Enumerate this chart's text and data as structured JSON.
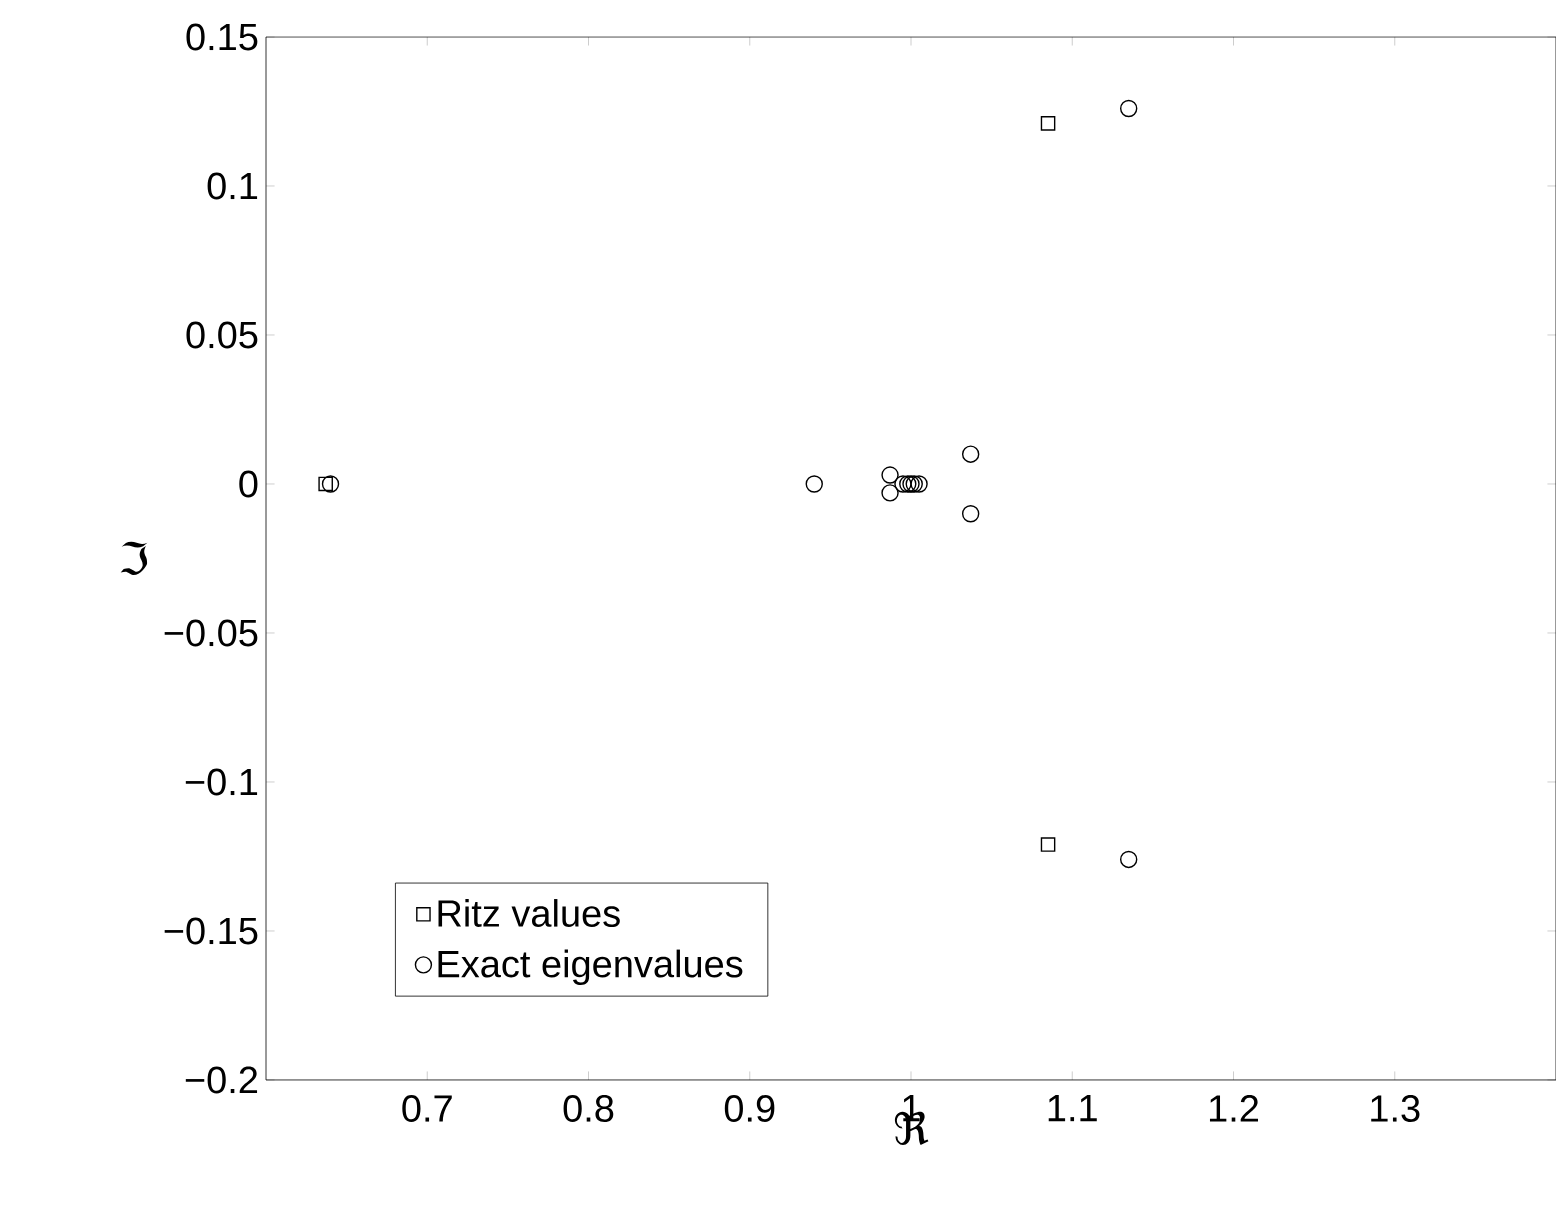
{
  "chart_data": {
    "type": "scatter",
    "xlabel": "ℜ",
    "ylabel": "ℑ",
    "xlim": [
      0.6,
      1.4
    ],
    "ylim": [
      -0.2,
      0.15
    ],
    "xticks": [
      0.7,
      0.8,
      0.9,
      1,
      1.1,
      1.2,
      1.3
    ],
    "yticks": [
      {
        "value": -0.2,
        "label": "−0.2"
      },
      {
        "value": -0.15,
        "label": "−0.15"
      },
      {
        "value": -0.1,
        "label": "−0.1"
      },
      {
        "value": -0.05,
        "label": "−0.05"
      },
      0,
      0.05,
      0.1,
      0.15
    ],
    "legend": "bottom left",
    "grid": false,
    "series": [
      {
        "name": "Ritz values",
        "color": "#000000",
        "marker": "square",
        "x": [
          0.637,
          1.085,
          1.085
        ],
        "values": [
          0,
          0.121,
          -0.121
        ]
      },
      {
        "name": "Exact eigenvalues",
        "color": "#000000",
        "marker": "circle",
        "x": [
          0.64,
          0.94,
          0.987,
          0.987,
          0.995,
          0.998,
          1.0,
          1.002,
          1.005,
          1.037,
          1.037,
          1.135,
          1.135
        ],
        "values": [
          0,
          0,
          0.003,
          -0.003,
          0,
          0,
          0,
          0,
          0,
          0.01,
          -0.01,
          0.126,
          -0.126
        ]
      }
    ]
  }
}
